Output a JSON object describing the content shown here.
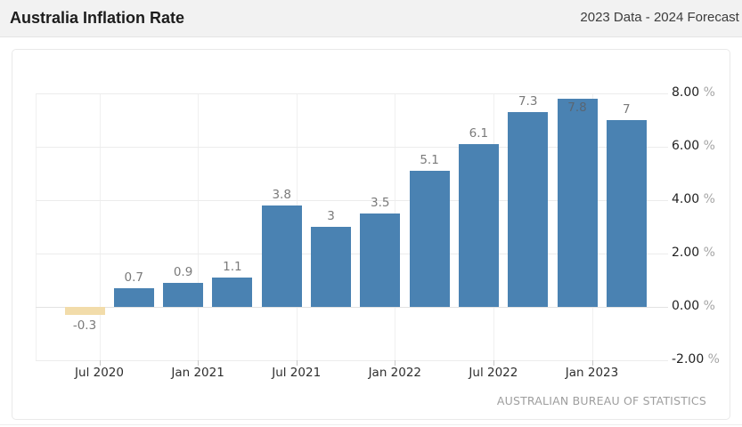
{
  "header": {
    "title": "Australia Inflation Rate",
    "subtitle": "2023 Data - 2024 Forecast -"
  },
  "chart": {
    "source": "AUSTRALIAN BUREAU OF STATISTICS"
  },
  "colors": {
    "header_bg": "#f2f2f2",
    "bar_positive": "#4a82b2",
    "bar_negative": "#f2dcaa",
    "grid": "#ececec",
    "value_label": "#7a7a7a",
    "axis_label": "#2e2e2e",
    "y_label_number": "#222222",
    "y_label_suffix": "#a6a6a6",
    "source_text": "#9e9e9e"
  },
  "chart_data": {
    "type": "bar",
    "title": "Australia Inflation Rate",
    "values": [
      -0.3,
      0.7,
      0.9,
      1.1,
      3.8,
      3,
      3.5,
      5.1,
      6.1,
      7.3,
      7.8,
      7
    ],
    "bar_labels": [
      "-0.3",
      "0.7",
      "0.9",
      "1.1",
      "3.8",
      "3",
      "3.5",
      "5.1",
      "6.1",
      "7.3",
      "7.8",
      "7"
    ],
    "negative_indices": [
      0
    ],
    "inside_label_indices": [
      10
    ],
    "x_tick_labels": [
      "Jul 2020",
      "Jan 2021",
      "Jul 2021",
      "Jan 2022",
      "Jul 2022",
      "Jan 2023"
    ],
    "x_tick_every_n_bars": 2,
    "y_ticks": [
      {
        "value": 8,
        "label": "8.00"
      },
      {
        "value": 6,
        "label": "6.00"
      },
      {
        "value": 4,
        "label": "4.00"
      },
      {
        "value": 2,
        "label": "2.00"
      },
      {
        "value": 0,
        "label": "0.00"
      },
      {
        "value": -2,
        "label": "-2.00"
      }
    ],
    "y_suffix": "%",
    "ylim": [
      -2,
      8
    ],
    "y_axis_side": "right",
    "grid": true,
    "legend": false,
    "source": "AUSTRALIAN BUREAU OF STATISTICS"
  }
}
